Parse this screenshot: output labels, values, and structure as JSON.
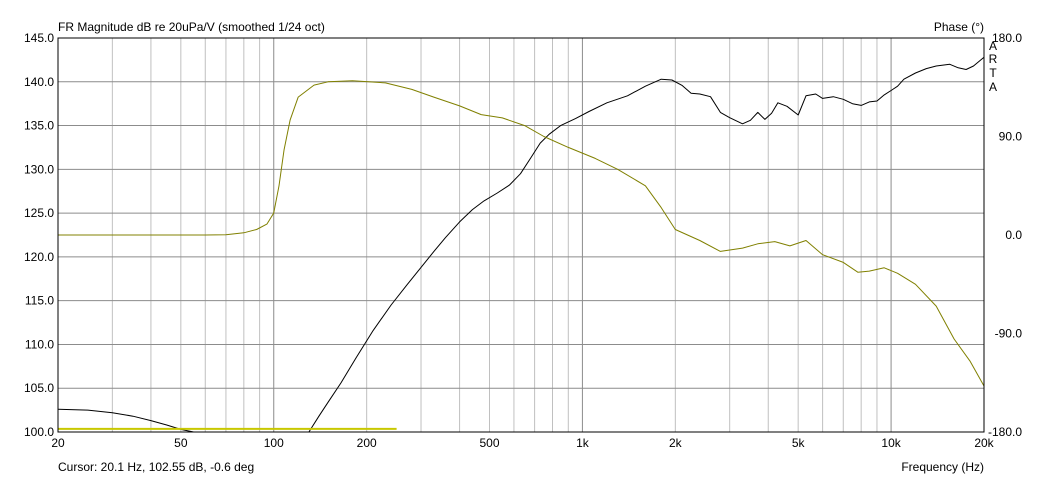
{
  "chart_data": {
    "type": "line",
    "title": "FR Magnitude dB re 20uPa/V (smoothed 1/24 oct)",
    "y2label": "Phase (°)",
    "xlabel": "Frequency (Hz)",
    "cursor": "Cursor: 20.1 Hz, 102.55 dB, -0.6 deg",
    "watermark": [
      "A",
      "R",
      "T",
      "A"
    ],
    "x_scale": "log",
    "xlim": [
      20,
      20000
    ],
    "ylim": [
      100,
      145
    ],
    "y2lim": [
      -180,
      180
    ],
    "x_ticks": [
      {
        "value": 20,
        "label": "20"
      },
      {
        "value": 50,
        "label": "50"
      },
      {
        "value": 100,
        "label": "100"
      },
      {
        "value": 200,
        "label": "200"
      },
      {
        "value": 500,
        "label": "500"
      },
      {
        "value": 1000,
        "label": "1k"
      },
      {
        "value": 2000,
        "label": "2k"
      },
      {
        "value": 5000,
        "label": "5k"
      },
      {
        "value": 10000,
        "label": "10k"
      },
      {
        "value": 20000,
        "label": "20k"
      }
    ],
    "y_ticks": [
      {
        "value": 100,
        "label": "100.0"
      },
      {
        "value": 105,
        "label": "105.0"
      },
      {
        "value": 110,
        "label": "110.0"
      },
      {
        "value": 115,
        "label": "115.0"
      },
      {
        "value": 120,
        "label": "120.0"
      },
      {
        "value": 125,
        "label": "125.0"
      },
      {
        "value": 130,
        "label": "130.0"
      },
      {
        "value": 135,
        "label": "135.0"
      },
      {
        "value": 140,
        "label": "140.0"
      },
      {
        "value": 145,
        "label": "145.0"
      }
    ],
    "y2_ticks": [
      {
        "value": 180,
        "label": "180.0"
      },
      {
        "value": 90,
        "label": "90.0"
      },
      {
        "value": 0,
        "label": "0.0"
      },
      {
        "value": -90,
        "label": "-90.0"
      },
      {
        "value": -180,
        "label": "-180.0"
      }
    ],
    "grid": true,
    "colors": {
      "magnitude": "#000000",
      "phase": "#808000",
      "marker": "#c8c800",
      "grid": "#c0c0c0",
      "axis": "#000000"
    },
    "series": [
      {
        "axis": "y",
        "color": "#000000",
        "points": [
          [
            130,
            100
          ],
          [
            140,
            101.8
          ],
          [
            150,
            103.4
          ],
          [
            165,
            105.6
          ],
          [
            185,
            108.5
          ],
          [
            210,
            111.6
          ],
          [
            240,
            114.5
          ],
          [
            270,
            116.8
          ],
          [
            300,
            118.8
          ],
          [
            330,
            120.6
          ],
          [
            360,
            122.2
          ],
          [
            400,
            124.0
          ],
          [
            440,
            125.4
          ],
          [
            480,
            126.4
          ],
          [
            530,
            127.3
          ],
          [
            580,
            128.2
          ],
          [
            630,
            129.5
          ],
          [
            680,
            131.3
          ],
          [
            730,
            133.0
          ],
          [
            780,
            134.0
          ],
          [
            850,
            135.0
          ],
          [
            950,
            135.8
          ],
          [
            1050,
            136.6
          ],
          [
            1200,
            137.6
          ],
          [
            1400,
            138.4
          ],
          [
            1600,
            139.5
          ],
          [
            1800,
            140.3
          ],
          [
            1950,
            140.2
          ],
          [
            2100,
            139.6
          ],
          [
            2250,
            138.7
          ],
          [
            2400,
            138.6
          ],
          [
            2600,
            138.3
          ],
          [
            2800,
            136.5
          ],
          [
            3000,
            135.9
          ],
          [
            3300,
            135.2
          ],
          [
            3500,
            135.6
          ],
          [
            3700,
            136.5
          ],
          [
            3900,
            135.7
          ],
          [
            4100,
            136.4
          ],
          [
            4300,
            137.6
          ],
          [
            4600,
            137.2
          ],
          [
            5000,
            136.2
          ],
          [
            5300,
            138.4
          ],
          [
            5700,
            138.6
          ],
          [
            6000,
            138.1
          ],
          [
            6500,
            138.3
          ],
          [
            7000,
            138.0
          ],
          [
            7500,
            137.5
          ],
          [
            8000,
            137.3
          ],
          [
            8500,
            137.7
          ],
          [
            9000,
            137.8
          ],
          [
            9500,
            138.5
          ],
          [
            10000,
            139.0
          ],
          [
            10500,
            139.5
          ],
          [
            11000,
            140.3
          ],
          [
            12000,
            141.0
          ],
          [
            13000,
            141.5
          ],
          [
            14000,
            141.8
          ],
          [
            15500,
            142.0
          ],
          [
            16500,
            141.6
          ],
          [
            17500,
            141.4
          ],
          [
            18500,
            141.8
          ],
          [
            20000,
            142.8
          ]
        ]
      },
      {
        "axis": "y2",
        "color": "#808000",
        "points": [
          [
            20,
            0
          ],
          [
            30,
            0
          ],
          [
            40,
            0
          ],
          [
            50,
            0
          ],
          [
            60,
            0
          ],
          [
            70,
            0.2
          ],
          [
            80,
            2
          ],
          [
            88,
            5
          ],
          [
            95,
            10
          ],
          [
            100,
            20
          ],
          [
            104,
            45
          ],
          [
            108,
            78
          ],
          [
            113,
            105
          ],
          [
            120,
            126
          ],
          [
            135,
            137
          ],
          [
            150,
            140
          ],
          [
            180,
            141
          ],
          [
            230,
            139
          ],
          [
            280,
            133
          ],
          [
            330,
            126
          ],
          [
            400,
            118
          ],
          [
            470,
            110
          ],
          [
            550,
            107
          ],
          [
            650,
            100
          ],
          [
            750,
            90
          ],
          [
            900,
            80
          ],
          [
            1100,
            70
          ],
          [
            1300,
            60
          ],
          [
            1600,
            45
          ],
          [
            1800,
            25
          ],
          [
            2000,
            5
          ],
          [
            2400,
            -5
          ],
          [
            2800,
            -15
          ],
          [
            3300,
            -12
          ],
          [
            3700,
            -8
          ],
          [
            4200,
            -6
          ],
          [
            4700,
            -10
          ],
          [
            5300,
            -5
          ],
          [
            6000,
            -18
          ],
          [
            7000,
            -25
          ],
          [
            7800,
            -34
          ],
          [
            8500,
            -33
          ],
          [
            9500,
            -30
          ],
          [
            10500,
            -35
          ],
          [
            12000,
            -45
          ],
          [
            14000,
            -65
          ],
          [
            16000,
            -95
          ],
          [
            18000,
            -115
          ],
          [
            20000,
            -138
          ]
        ]
      },
      {
        "axis": "y",
        "color": "#000000",
        "points": [
          [
            20,
            102.6
          ],
          [
            25,
            102.5
          ],
          [
            30,
            102.2
          ],
          [
            35,
            101.8
          ],
          [
            40,
            101.3
          ],
          [
            45,
            100.8
          ],
          [
            50,
            100.3
          ],
          [
            55,
            100
          ]
        ]
      },
      {
        "axis": "y",
        "color": "#c8c800",
        "width": 2,
        "points": [
          [
            20,
            100.35
          ],
          [
            250,
            100.35
          ]
        ]
      }
    ]
  }
}
